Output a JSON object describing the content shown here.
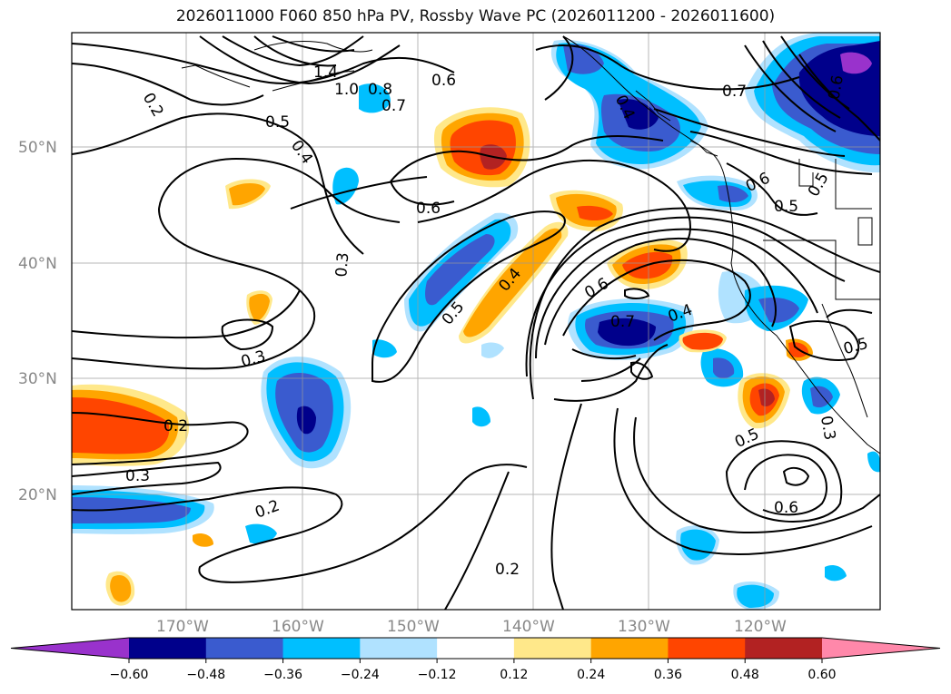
{
  "title": "2026011000 F060 850 hPa PV, Rossby Wave PC (2026011200 - 2026011600)",
  "lat_labels": [
    "50°N",
    "40°N",
    "30°N",
    "20°N"
  ],
  "lon_labels": [
    "170°W",
    "160°W",
    "150°W",
    "140°W",
    "130°W",
    "120°W"
  ],
  "contour_labels": [
    "0.2",
    "1.4",
    "1.0",
    "0.8",
    "0.7",
    "0.6",
    "0.5",
    "0.4",
    "0.6",
    "0.3",
    "0.4",
    "0.5",
    "0.6",
    "0.7",
    "0.4",
    "0.3",
    "0.2",
    "0.3",
    "0.2",
    "0.2",
    "0.5",
    "0.6",
    "0.5",
    "0.3",
    "0.6",
    "0.5",
    "0.7",
    "0.6",
    "0.4",
    "0.5"
  ],
  "colorbar": {
    "ticks": [
      "−0.60",
      "−0.48",
      "−0.36",
      "−0.24",
      "−0.12",
      "0.12",
      "0.24",
      "0.36",
      "0.48",
      "0.60"
    ],
    "colors": [
      "#9932cc",
      "#00008b",
      "#3a5bcf",
      "#00bfff",
      "#b0e2ff",
      "#ffffff",
      "#ffe88a",
      "#ffa500",
      "#ff4500",
      "#b22222",
      "#ff88aa"
    ]
  }
}
